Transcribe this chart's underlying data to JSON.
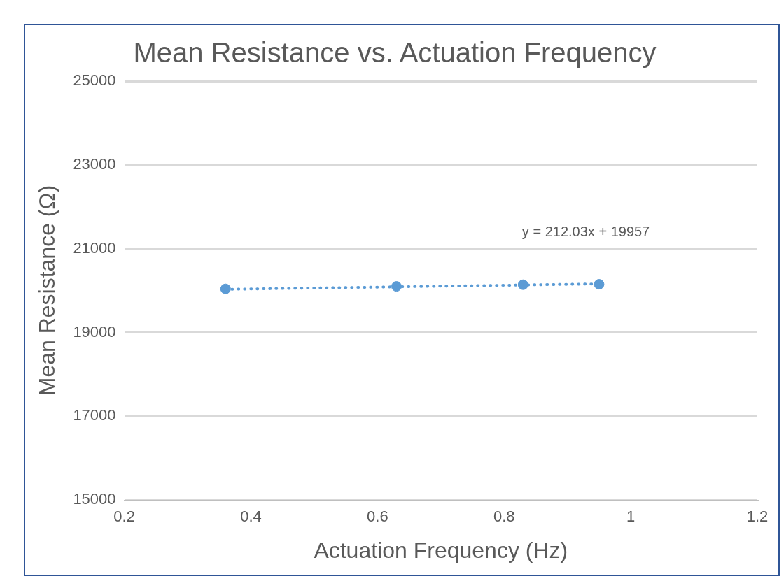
{
  "chart_data": {
    "type": "scatter",
    "title": "Mean Resistance vs. Actuation Frequency",
    "xlabel": "Actuation Frequency (Hz)",
    "ylabel": "Mean Resistance (Ω)",
    "series": [
      {
        "type": "scatter",
        "color": "#5b9bd5",
        "x": [
          0.36,
          0.63,
          0.83,
          0.95
        ],
        "values": [
          20040,
          20100,
          20140,
          20150
        ],
        "marker": "circle"
      },
      {
        "type": "line",
        "color": "#5b9bd5",
        "x": [
          0.36,
          0.95
        ],
        "values": [
          20030,
          20160
        ],
        "marker": "none",
        "line_style": "dotted"
      }
    ],
    "annotations": [
      "y = 212.03x + 19957"
    ],
    "xlim": [
      0.2,
      1.2
    ],
    "xticks": [
      0.2,
      0.4,
      0.6,
      0.8,
      1,
      1.2
    ],
    "ylim": [
      15000,
      25000
    ],
    "yticks": [
      15000,
      17000,
      19000,
      21000,
      23000,
      25000
    ],
    "grid": "y",
    "legend": false
  }
}
